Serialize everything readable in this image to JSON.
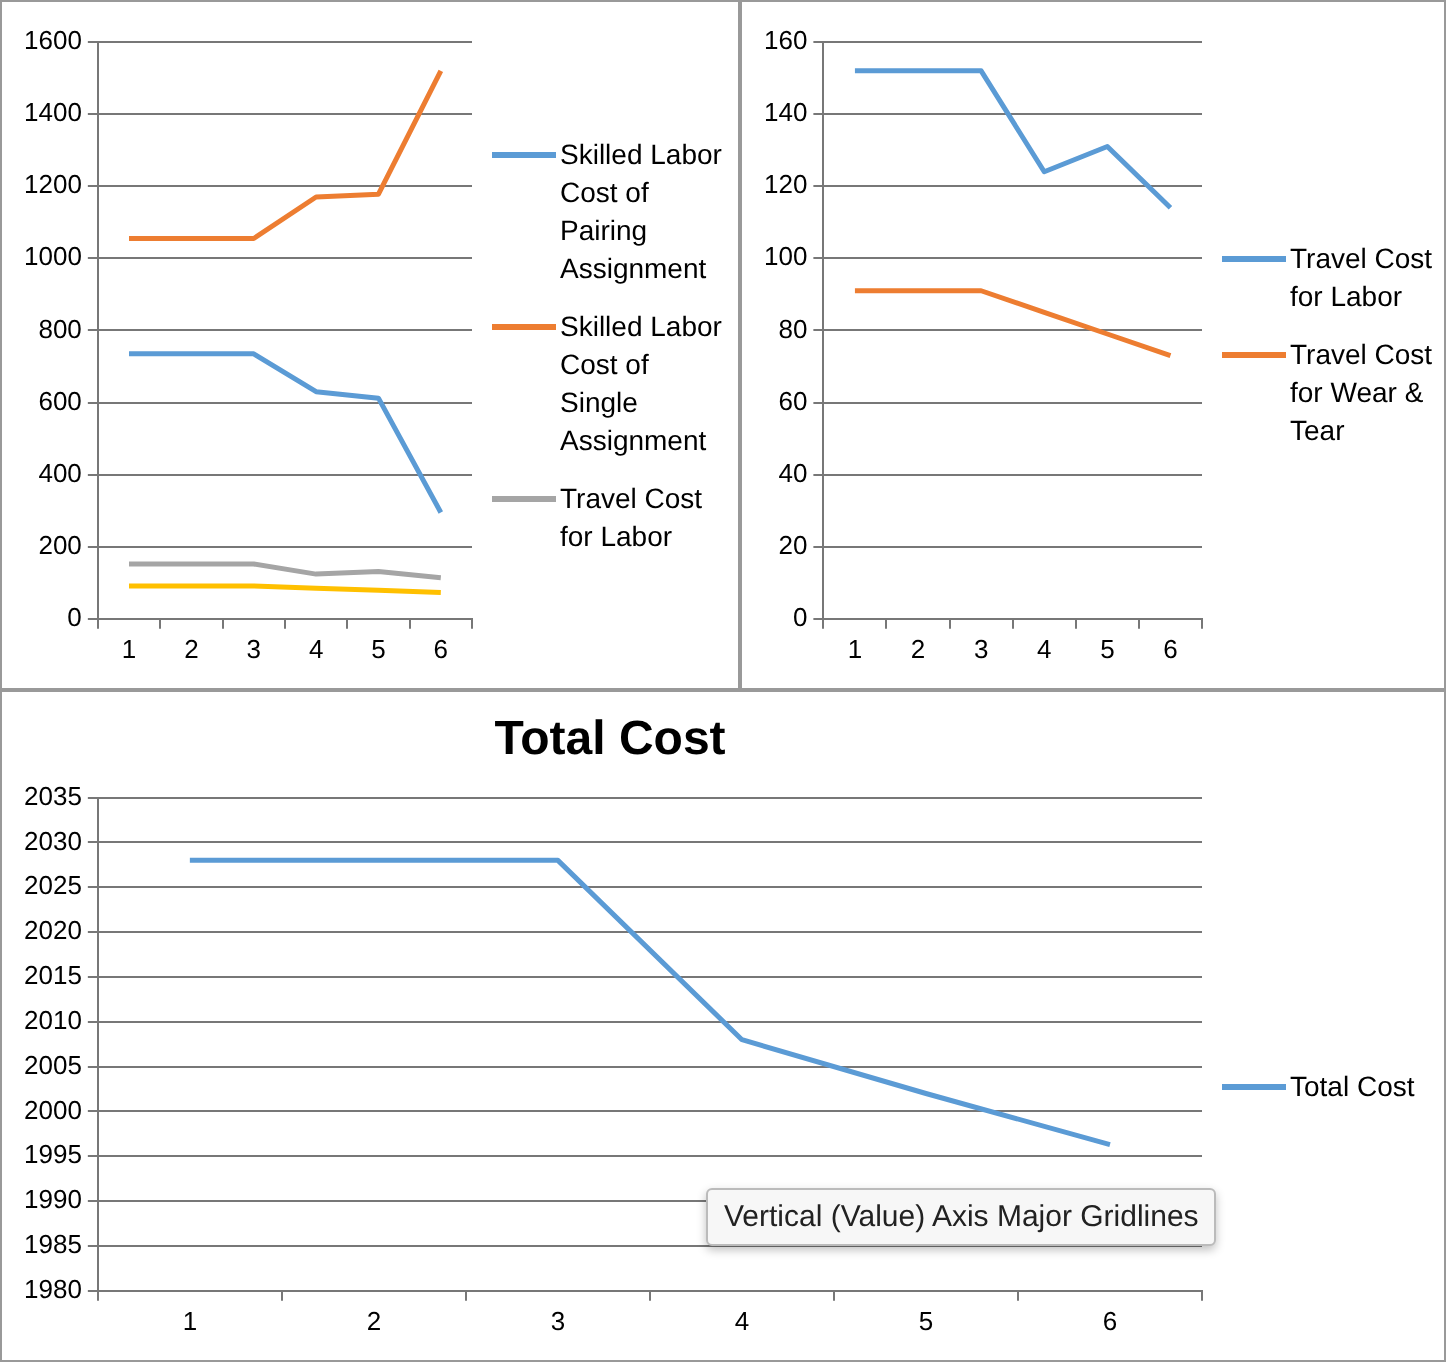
{
  "chart_data": [
    {
      "type": "line",
      "categories": [
        "1",
        "2",
        "3",
        "4",
        "5",
        "6"
      ],
      "series": [
        {
          "name": "Skilled Labor Cost of Pairing Assignment",
          "color": "#5b9bd5",
          "values": [
            735,
            735,
            735,
            630,
            612,
            295
          ]
        },
        {
          "name": "Skilled Labor Cost of Single Assignment",
          "color": "#ed7d31",
          "values": [
            1055,
            1055,
            1055,
            1170,
            1178,
            1520
          ]
        },
        {
          "name": "Travel Cost for Labor",
          "color": "#a5a5a5",
          "values": [
            152,
            152,
            152,
            124,
            131,
            114
          ]
        },
        {
          "color": "#ffc000",
          "values": [
            91,
            91,
            91,
            85,
            79,
            73
          ]
        }
      ],
      "ylim": [
        0,
        1600
      ],
      "yticks": [
        0,
        200,
        400,
        600,
        800,
        1000,
        1200,
        1400,
        1600
      ],
      "grid": "y",
      "legend": "right",
      "marker": "none"
    },
    {
      "type": "line",
      "categories": [
        "1",
        "2",
        "3",
        "4",
        "5",
        "6"
      ],
      "series": [
        {
          "name": "Travel Cost for Labor",
          "color": "#5b9bd5",
          "values": [
            152,
            152,
            152,
            124,
            131,
            114
          ]
        },
        {
          "name": "Travel Cost for Wear & Tear",
          "color": "#ed7d31",
          "values": [
            91,
            91,
            91,
            85,
            79,
            73
          ]
        }
      ],
      "ylim": [
        0,
        160
      ],
      "yticks": [
        0,
        20,
        40,
        60,
        80,
        100,
        120,
        140,
        160
      ],
      "grid": "y",
      "legend": "right",
      "marker": "none"
    },
    {
      "type": "line",
      "title": "Total Cost",
      "categories": [
        "1",
        "2",
        "3",
        "4",
        "5",
        "6"
      ],
      "series": [
        {
          "name": "Total Cost",
          "color": "#5b9bd5",
          "values": [
            2028,
            2028,
            2028,
            2008,
            2002,
            1996.3
          ]
        }
      ],
      "ylim": [
        1980,
        2035
      ],
      "yticks": [
        1980,
        1985,
        1990,
        1995,
        2000,
        2005,
        2010,
        2015,
        2020,
        2025,
        2030,
        2035
      ],
      "grid": "y",
      "legend": "right",
      "marker": "none",
      "annotations": [
        "Vertical (Value) Axis Major Gridlines"
      ]
    }
  ]
}
